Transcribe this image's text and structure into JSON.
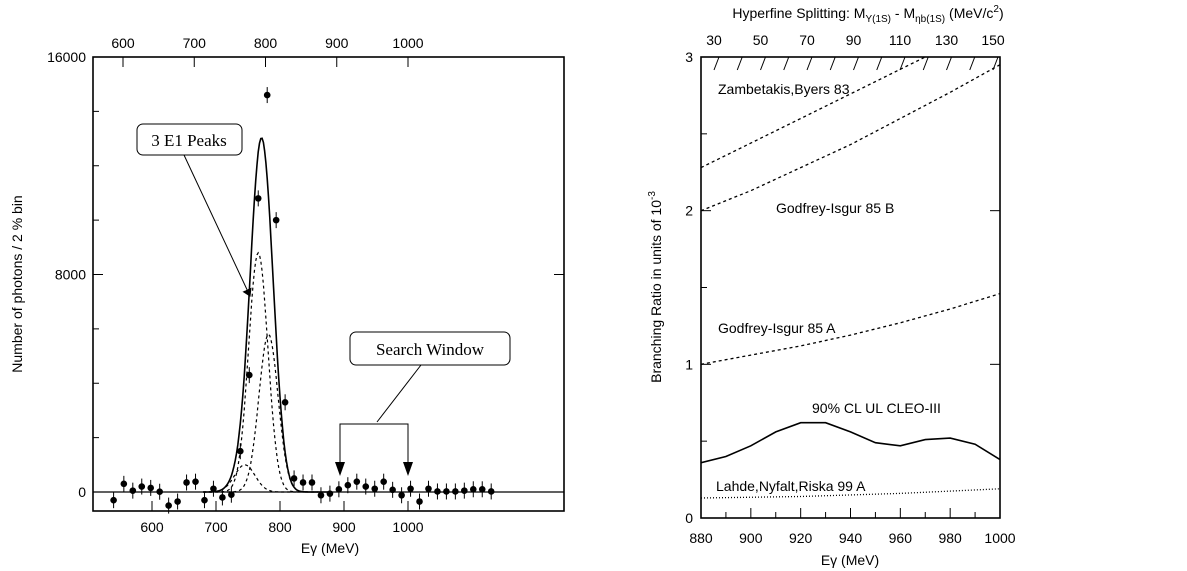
{
  "chart_data": [
    {
      "id": "left",
      "type": "scatter",
      "xlabel": "Eγ (MeV)",
      "ylabel": "Number of photons / 2 % bin",
      "ylim": [
        -1000,
        16000
      ],
      "x_top_ticks": [
        "600",
        "700",
        "800",
        "900",
        "1000"
      ],
      "x_bottom_ticks": [
        "600",
        "700",
        "800",
        "900",
        "1000"
      ],
      "y_ticks": [
        "0",
        "8000",
        "16000"
      ],
      "points": [
        [
          540,
          -300
        ],
        [
          556,
          300
        ],
        [
          570,
          50
        ],
        [
          584,
          200
        ],
        [
          598,
          150
        ],
        [
          612,
          10
        ],
        [
          626,
          -500
        ],
        [
          640,
          -350
        ],
        [
          654,
          350
        ],
        [
          668,
          380
        ],
        [
          682,
          -300
        ],
        [
          696,
          120
        ],
        [
          710,
          -200
        ],
        [
          724,
          -100
        ],
        [
          738,
          1500
        ],
        [
          752,
          4300
        ],
        [
          766,
          10800
        ],
        [
          780,
          14600
        ],
        [
          794,
          10000
        ],
        [
          808,
          3300
        ],
        [
          822,
          500
        ],
        [
          836,
          350
        ],
        [
          850,
          350
        ],
        [
          864,
          -120
        ],
        [
          878,
          -60
        ],
        [
          892,
          100
        ],
        [
          906,
          250
        ],
        [
          920,
          380
        ],
        [
          934,
          200
        ],
        [
          948,
          120
        ],
        [
          962,
          380
        ],
        [
          976,
          80
        ],
        [
          990,
          -120
        ],
        [
          1004,
          120
        ],
        [
          1018,
          -350
        ],
        [
          1032,
          120
        ],
        [
          1046,
          20
        ],
        [
          1060,
          20
        ],
        [
          1074,
          20
        ],
        [
          1088,
          50
        ],
        [
          1102,
          100
        ],
        [
          1116,
          100
        ],
        [
          1130,
          20
        ]
      ],
      "annotations": {
        "peaks_label": "3 E1 Peaks",
        "window_label": "Search Window"
      }
    },
    {
      "id": "right",
      "type": "line",
      "title": "Hyperfine Splitting: M",
      "title_sub1": "Υ(1S)",
      "title_mid": " - M",
      "title_sub2": "ηb(1S)",
      "title_unit": " (MeV/c",
      "title_sup": "2",
      "title_end": ")",
      "xlabel": "Eγ (MeV)",
      "ylabel": "Branching Ratio in units of 10",
      "ylabel_sup": "-3",
      "xlim": [
        880,
        1000
      ],
      "ylim": [
        0,
        3
      ],
      "x_ticks": [
        "880",
        "900",
        "920",
        "940",
        "960",
        "980",
        "1000"
      ],
      "y_ticks": [
        "0",
        "1",
        "2",
        "3"
      ],
      "x_top_ticks": [
        "30",
        "50",
        "70",
        "90",
        "110",
        "130",
        "150"
      ],
      "series": [
        {
          "name": "Zambetakis,Byers 83",
          "style": "dashed",
          "x": [
            880,
            900,
            920,
            940,
            960,
            980,
            1000
          ],
          "values": [
            2.28,
            2.44,
            2.6,
            2.76,
            2.92,
            3.08,
            3.24
          ]
        },
        {
          "name": "Godfrey-Isgur 85 B",
          "style": "dashed",
          "x": [
            880,
            900,
            920,
            940,
            960,
            980,
            1000
          ],
          "values": [
            2.0,
            2.13,
            2.28,
            2.43,
            2.6,
            2.77,
            2.95
          ]
        },
        {
          "name": "Godfrey-Isgur 85 A",
          "style": "dashed",
          "x": [
            880,
            900,
            920,
            940,
            960,
            980,
            1000
          ],
          "values": [
            1.0,
            1.06,
            1.12,
            1.19,
            1.27,
            1.36,
            1.46
          ]
        },
        {
          "name": "90% CL UL CLEO-III",
          "style": "solid",
          "x": [
            880,
            890,
            900,
            910,
            920,
            930,
            940,
            950,
            960,
            970,
            980,
            990,
            1000
          ],
          "values": [
            0.36,
            0.4,
            0.47,
            0.56,
            0.62,
            0.62,
            0.56,
            0.49,
            0.47,
            0.51,
            0.52,
            0.48,
            0.38
          ]
        },
        {
          "name": "Lahde,Nyfalt,Riska 99 A",
          "style": "dotted",
          "x": [
            880,
            920,
            960,
            1000
          ],
          "values": [
            0.13,
            0.14,
            0.16,
            0.19
          ]
        }
      ]
    }
  ]
}
